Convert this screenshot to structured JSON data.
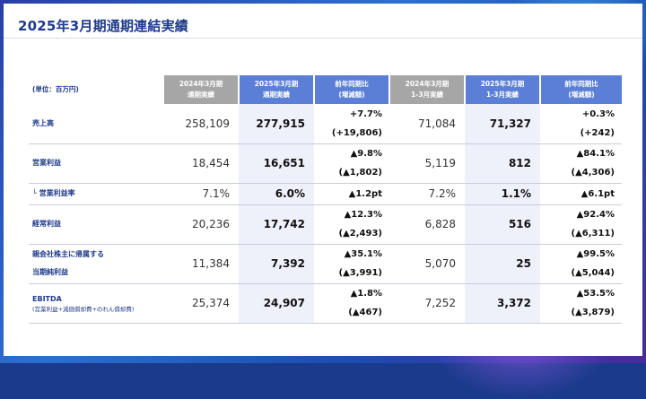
{
  "title": "2025年3月期通期連結実績",
  "unit_label": "(単位：百万円)",
  "headers": [
    {
      "line1": "2024年3月期",
      "line2": "通期実績"
    },
    {
      "line1": "2025年3月期",
      "line2": "通期実績"
    },
    {
      "line1": "前年同期比",
      "line2": "(増減額)"
    },
    {
      "line1": "2024年3月期",
      "line2": "1-3月実績"
    },
    {
      "line1": "2025年3月期",
      "line2": "1-3月実績"
    },
    {
      "line1": "前年同期比",
      "line2": "(増減額)"
    }
  ],
  "rows": [
    {
      "label": "売上高",
      "label2": "",
      "sub": "",
      "fy2024": "258,109",
      "fy2025": "277,915",
      "yoy_pct": "+7.7%",
      "yoy_amt": "(+19,806)",
      "q2024": "71,084",
      "q2025": "71,327",
      "q_pct": "+0.3%",
      "q_amt": "(+242)"
    },
    {
      "label": "営業利益",
      "label2": "",
      "sub": "",
      "fy2024": "18,454",
      "fy2025": "16,651",
      "yoy_pct": "▲9.8%",
      "yoy_amt": "(▲1,802)",
      "q2024": "5,119",
      "q2025": "812",
      "q_pct": "▲84.1%",
      "q_amt": "(▲4,306)"
    },
    {
      "label": "└ 営業利益率",
      "label2": "",
      "sub": "",
      "fy2024": "7.1%",
      "fy2025": "6.0%",
      "yoy_pct": "▲1.2pt",
      "yoy_amt": "",
      "q2024": "7.2%",
      "q2025": "1.1%",
      "q_pct": "▲6.1pt",
      "q_amt": ""
    },
    {
      "label": "経常利益",
      "label2": "",
      "sub": "",
      "fy2024": "20,236",
      "fy2025": "17,742",
      "yoy_pct": "▲12.3%",
      "yoy_amt": "(▲2,493)",
      "q2024": "6,828",
      "q2025": "516",
      "q_pct": "▲92.4%",
      "q_amt": "(▲6,311)"
    },
    {
      "label": "親会社株主に帰属する",
      "label2": "当期純利益",
      "sub": "",
      "fy2024": "11,384",
      "fy2025": "7,392",
      "yoy_pct": "▲35.1%",
      "yoy_amt": "(▲3,991)",
      "q2024": "5,070",
      "q2025": "25",
      "q_pct": "▲99.5%",
      "q_amt": "(▲5,044)"
    },
    {
      "label": "EBITDA",
      "label2": "",
      "sub": "(営業利益+減価償却費+のれん償却費)",
      "fy2024": "25,374",
      "fy2025": "24,907",
      "yoy_pct": "▲1.8%",
      "yoy_amt": "(▲467)",
      "q2024": "7,252",
      "q2025": "3,372",
      "q_pct": "▲53.5%",
      "q_amt": "(▲3,879)"
    }
  ]
}
